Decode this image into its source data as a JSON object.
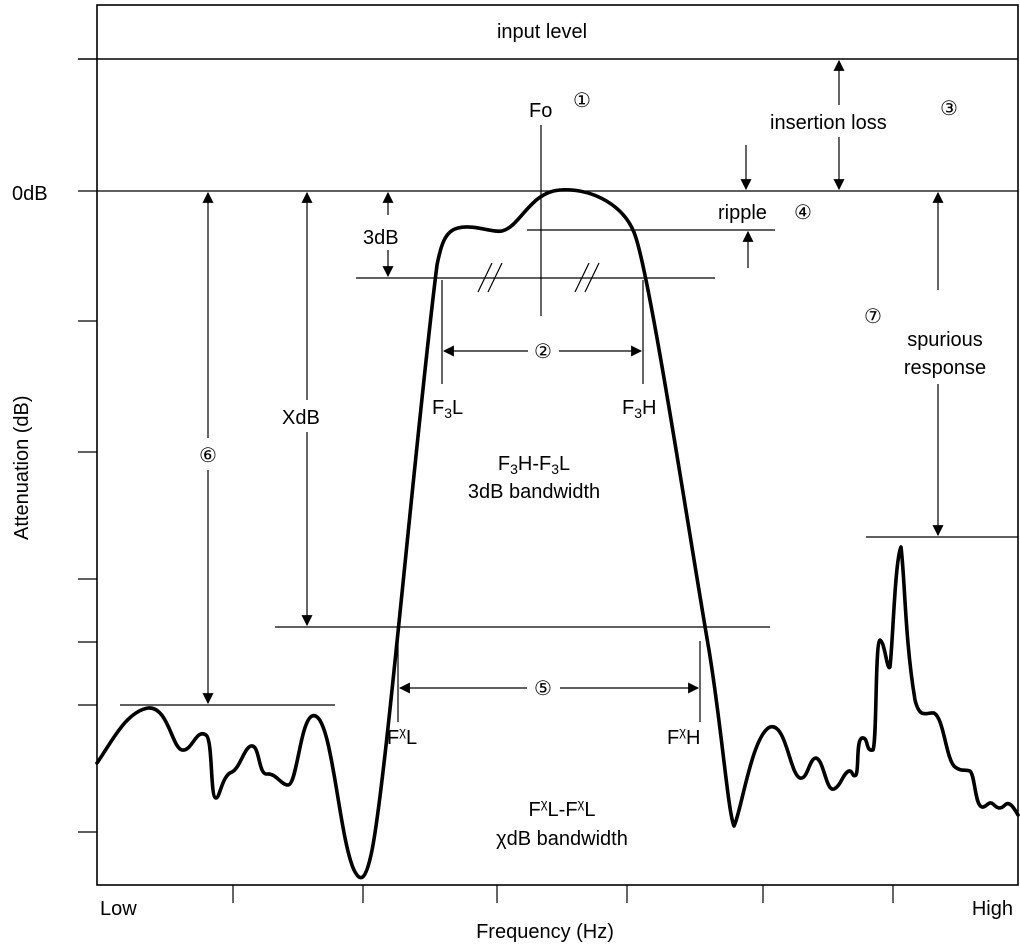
{
  "title_band": {
    "text": "input level"
  },
  "axes": {
    "y_label": "Attenuation (dB)",
    "x_label": "Frequency (Hz)",
    "y_zero_label": "0dB",
    "x_low_label": "Low",
    "x_high_label": "High"
  },
  "markers": {
    "center": {
      "main": "F",
      "tail": "o",
      "num": "①"
    },
    "bandwidth_3db": {
      "num": "②"
    },
    "insertion_loss": {
      "text": "insertion loss",
      "num": "③"
    },
    "ripple": {
      "text": "ripple",
      "num": "④"
    },
    "bandwidth_xdb": {
      "num": "⑤"
    },
    "stopband": {
      "num": "⑥"
    },
    "spurious": {
      "num": "⑦",
      "line1": "spurious",
      "line2": "response"
    }
  },
  "labels": {
    "three_db": "3dB",
    "x_db": "XdB",
    "f3l": {
      "main": "F",
      "sub": "3",
      "tail": "L"
    },
    "f3h": {
      "main": "F",
      "sub": "3",
      "tail": "H"
    },
    "fxl": {
      "main": "F",
      "sup": "χ",
      "tail": "L"
    },
    "fxh": {
      "main": "F",
      "sup": "χ",
      "tail": "H"
    }
  },
  "captions": {
    "bw3_formula": {
      "a_main": "F",
      "a_sub": "3",
      "a_tail": "H-",
      "b_main": "F",
      "b_sub": "3",
      "b_tail": "L"
    },
    "bw3_text": "3dB bandwidth",
    "bwx_formula": {
      "a_main": "F",
      "a_sup": "χ",
      "a_tail": "L-",
      "b_main": "F",
      "b_sup": "χ",
      "b_tail": "L"
    },
    "bwx_text": "χdB bandwidth"
  }
}
